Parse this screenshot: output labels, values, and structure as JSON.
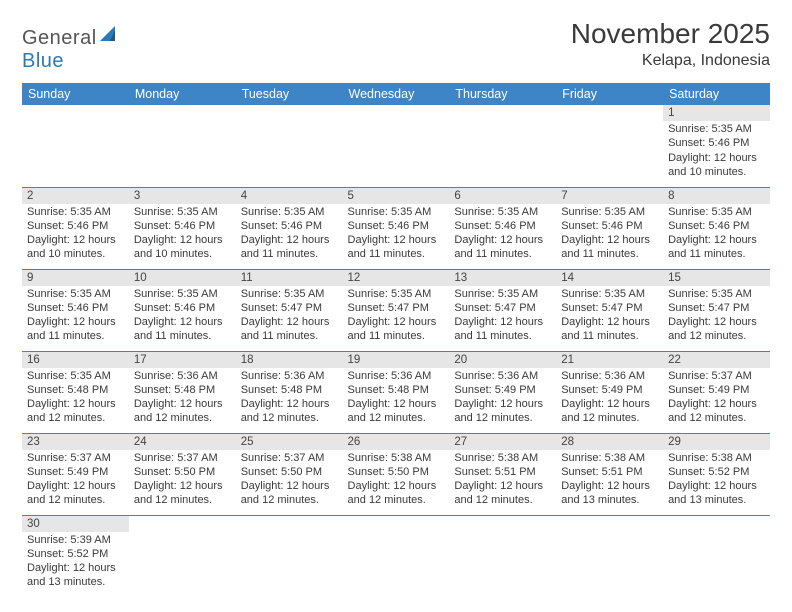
{
  "logo": {
    "text_general": "General",
    "text_blue": "Blue"
  },
  "title": "November 2025",
  "location": "Kelapa, Indonesia",
  "header_bg": "#3d85c6",
  "daynum_bg": "#e6e6e6",
  "border_color": "#3d85c6",
  "weekdays": [
    "Sunday",
    "Monday",
    "Tuesday",
    "Wednesday",
    "Thursday",
    "Friday",
    "Saturday"
  ],
  "weeks": [
    [
      null,
      null,
      null,
      null,
      null,
      null,
      {
        "n": "1",
        "sunrise": "Sunrise: 5:35 AM",
        "sunset": "Sunset: 5:46 PM",
        "daylight": "Daylight: 12 hours and 10 minutes."
      }
    ],
    [
      {
        "n": "2",
        "sunrise": "Sunrise: 5:35 AM",
        "sunset": "Sunset: 5:46 PM",
        "daylight": "Daylight: 12 hours and 10 minutes."
      },
      {
        "n": "3",
        "sunrise": "Sunrise: 5:35 AM",
        "sunset": "Sunset: 5:46 PM",
        "daylight": "Daylight: 12 hours and 10 minutes."
      },
      {
        "n": "4",
        "sunrise": "Sunrise: 5:35 AM",
        "sunset": "Sunset: 5:46 PM",
        "daylight": "Daylight: 12 hours and 11 minutes."
      },
      {
        "n": "5",
        "sunrise": "Sunrise: 5:35 AM",
        "sunset": "Sunset: 5:46 PM",
        "daylight": "Daylight: 12 hours and 11 minutes."
      },
      {
        "n": "6",
        "sunrise": "Sunrise: 5:35 AM",
        "sunset": "Sunset: 5:46 PM",
        "daylight": "Daylight: 12 hours and 11 minutes."
      },
      {
        "n": "7",
        "sunrise": "Sunrise: 5:35 AM",
        "sunset": "Sunset: 5:46 PM",
        "daylight": "Daylight: 12 hours and 11 minutes."
      },
      {
        "n": "8",
        "sunrise": "Sunrise: 5:35 AM",
        "sunset": "Sunset: 5:46 PM",
        "daylight": "Daylight: 12 hours and 11 minutes."
      }
    ],
    [
      {
        "n": "9",
        "sunrise": "Sunrise: 5:35 AM",
        "sunset": "Sunset: 5:46 PM",
        "daylight": "Daylight: 12 hours and 11 minutes."
      },
      {
        "n": "10",
        "sunrise": "Sunrise: 5:35 AM",
        "sunset": "Sunset: 5:46 PM",
        "daylight": "Daylight: 12 hours and 11 minutes."
      },
      {
        "n": "11",
        "sunrise": "Sunrise: 5:35 AM",
        "sunset": "Sunset: 5:47 PM",
        "daylight": "Daylight: 12 hours and 11 minutes."
      },
      {
        "n": "12",
        "sunrise": "Sunrise: 5:35 AM",
        "sunset": "Sunset: 5:47 PM",
        "daylight": "Daylight: 12 hours and 11 minutes."
      },
      {
        "n": "13",
        "sunrise": "Sunrise: 5:35 AM",
        "sunset": "Sunset: 5:47 PM",
        "daylight": "Daylight: 12 hours and 11 minutes."
      },
      {
        "n": "14",
        "sunrise": "Sunrise: 5:35 AM",
        "sunset": "Sunset: 5:47 PM",
        "daylight": "Daylight: 12 hours and 11 minutes."
      },
      {
        "n": "15",
        "sunrise": "Sunrise: 5:35 AM",
        "sunset": "Sunset: 5:47 PM",
        "daylight": "Daylight: 12 hours and 12 minutes."
      }
    ],
    [
      {
        "n": "16",
        "sunrise": "Sunrise: 5:35 AM",
        "sunset": "Sunset: 5:48 PM",
        "daylight": "Daylight: 12 hours and 12 minutes."
      },
      {
        "n": "17",
        "sunrise": "Sunrise: 5:36 AM",
        "sunset": "Sunset: 5:48 PM",
        "daylight": "Daylight: 12 hours and 12 minutes."
      },
      {
        "n": "18",
        "sunrise": "Sunrise: 5:36 AM",
        "sunset": "Sunset: 5:48 PM",
        "daylight": "Daylight: 12 hours and 12 minutes."
      },
      {
        "n": "19",
        "sunrise": "Sunrise: 5:36 AM",
        "sunset": "Sunset: 5:48 PM",
        "daylight": "Daylight: 12 hours and 12 minutes."
      },
      {
        "n": "20",
        "sunrise": "Sunrise: 5:36 AM",
        "sunset": "Sunset: 5:49 PM",
        "daylight": "Daylight: 12 hours and 12 minutes."
      },
      {
        "n": "21",
        "sunrise": "Sunrise: 5:36 AM",
        "sunset": "Sunset: 5:49 PM",
        "daylight": "Daylight: 12 hours and 12 minutes."
      },
      {
        "n": "22",
        "sunrise": "Sunrise: 5:37 AM",
        "sunset": "Sunset: 5:49 PM",
        "daylight": "Daylight: 12 hours and 12 minutes."
      }
    ],
    [
      {
        "n": "23",
        "sunrise": "Sunrise: 5:37 AM",
        "sunset": "Sunset: 5:49 PM",
        "daylight": "Daylight: 12 hours and 12 minutes."
      },
      {
        "n": "24",
        "sunrise": "Sunrise: 5:37 AM",
        "sunset": "Sunset: 5:50 PM",
        "daylight": "Daylight: 12 hours and 12 minutes."
      },
      {
        "n": "25",
        "sunrise": "Sunrise: 5:37 AM",
        "sunset": "Sunset: 5:50 PM",
        "daylight": "Daylight: 12 hours and 12 minutes."
      },
      {
        "n": "26",
        "sunrise": "Sunrise: 5:38 AM",
        "sunset": "Sunset: 5:50 PM",
        "daylight": "Daylight: 12 hours and 12 minutes."
      },
      {
        "n": "27",
        "sunrise": "Sunrise: 5:38 AM",
        "sunset": "Sunset: 5:51 PM",
        "daylight": "Daylight: 12 hours and 12 minutes."
      },
      {
        "n": "28",
        "sunrise": "Sunrise: 5:38 AM",
        "sunset": "Sunset: 5:51 PM",
        "daylight": "Daylight: 12 hours and 13 minutes."
      },
      {
        "n": "29",
        "sunrise": "Sunrise: 5:38 AM",
        "sunset": "Sunset: 5:52 PM",
        "daylight": "Daylight: 12 hours and 13 minutes."
      }
    ],
    [
      {
        "n": "30",
        "sunrise": "Sunrise: 5:39 AM",
        "sunset": "Sunset: 5:52 PM",
        "daylight": "Daylight: 12 hours and 13 minutes."
      },
      null,
      null,
      null,
      null,
      null,
      null
    ]
  ]
}
